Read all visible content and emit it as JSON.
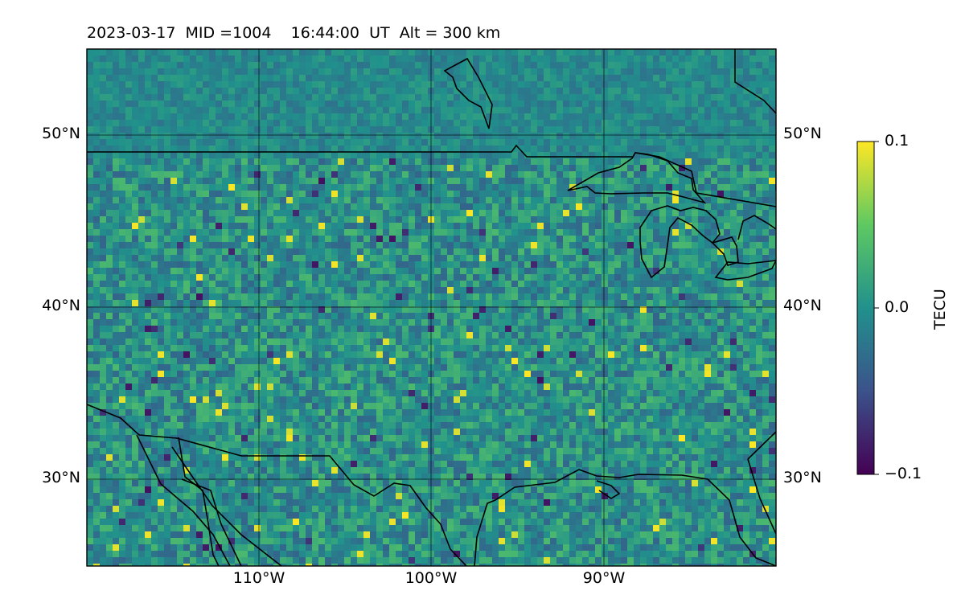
{
  "title": {
    "date": "2023-03-17",
    "mid": "MID =1004",
    "time": "16:44:00",
    "ut": "UT",
    "alt": "Alt = 300 km"
  },
  "latitude_ticks": [
    "50°N",
    "40°N",
    "30°N"
  ],
  "longitude_ticks": [
    "110°W",
    "100°W",
    "90°W"
  ],
  "colorbar": {
    "label": "TECU",
    "ticks": [
      "0.1",
      "0.0",
      "−0.1"
    ],
    "min": -0.1,
    "max": 0.1,
    "colormap": [
      "#440154",
      "#3b528b",
      "#21918c",
      "#5ec962",
      "#fde725"
    ]
  },
  "map": {
    "projection": "PlateCarree",
    "lon_range": [
      -120,
      -80
    ],
    "lat_range": [
      25,
      55
    ],
    "gridlines": true,
    "coastlines": true,
    "borders": true,
    "field_mean_color": "#2a8a8c"
  }
}
